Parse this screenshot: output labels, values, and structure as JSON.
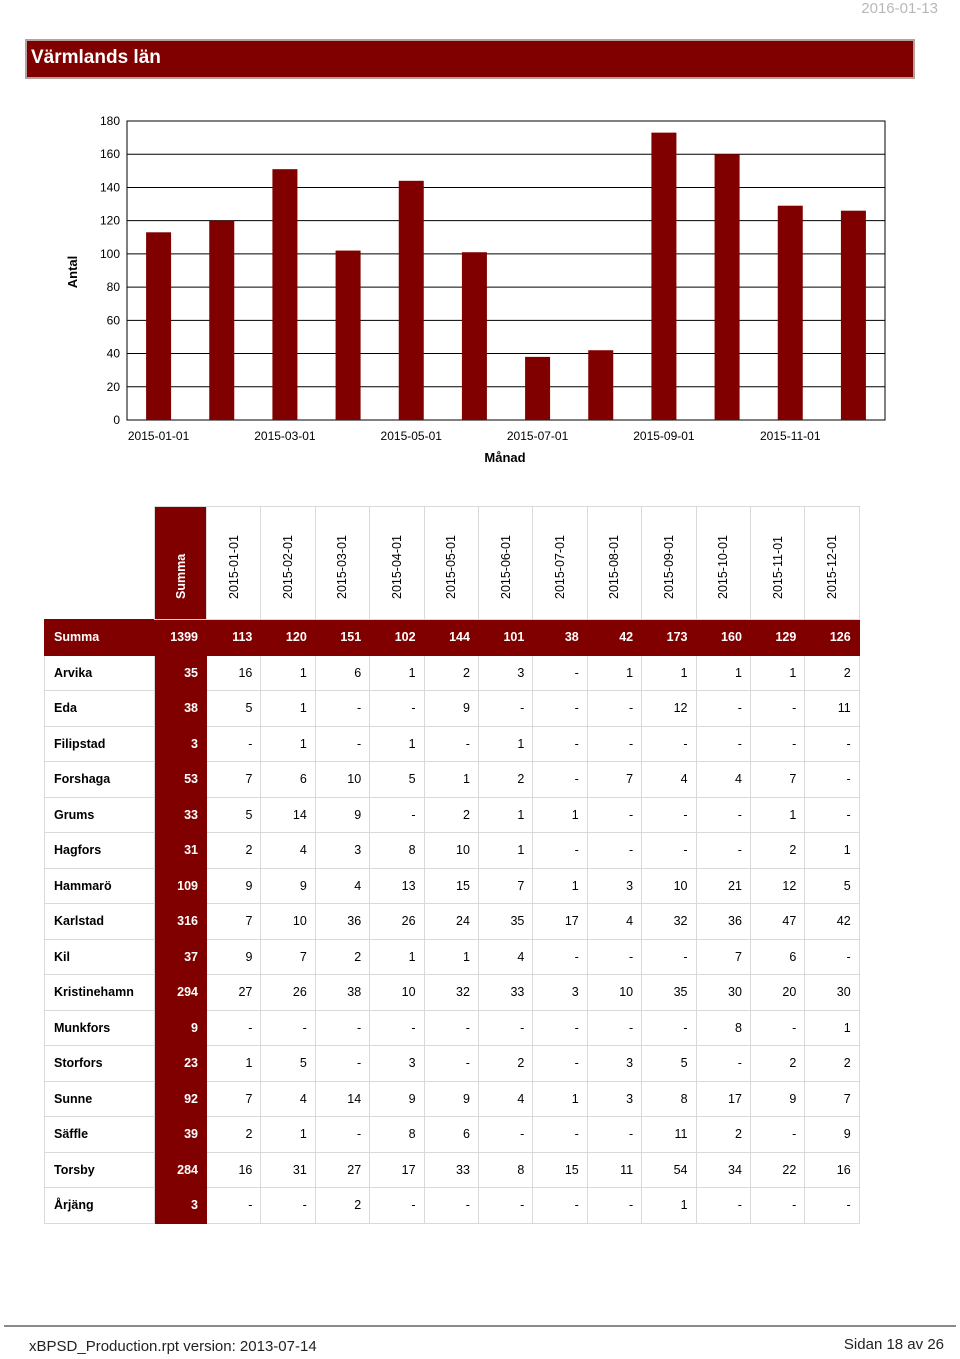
{
  "header": {
    "date": "2016-01-13",
    "title": "Värmlands län"
  },
  "chart_data": {
    "type": "bar",
    "categories": [
      "2015-01-01",
      "2015-02-01",
      "2015-03-01",
      "2015-04-01",
      "2015-05-01",
      "2015-06-01",
      "2015-07-01",
      "2015-08-01",
      "2015-09-01",
      "2015-10-01",
      "2015-11-01",
      "2015-12-01"
    ],
    "values": [
      113,
      120,
      151,
      102,
      144,
      101,
      38,
      42,
      173,
      160,
      129,
      126
    ],
    "x_tick_labels": [
      "2015-01-01",
      "2015-03-01",
      "2015-05-01",
      "2015-07-01",
      "2015-09-01",
      "2015-11-01"
    ],
    "y_ticks": [
      0,
      20,
      40,
      60,
      80,
      100,
      120,
      140,
      160,
      180
    ],
    "ylim": [
      0,
      180
    ],
    "xlabel": "Månad",
    "ylabel": "Antal",
    "bar_color": "#800000",
    "grid": true
  },
  "table": {
    "columns": [
      "Summa",
      "2015-01-01",
      "2015-02-01",
      "2015-03-01",
      "2015-04-01",
      "2015-05-01",
      "2015-06-01",
      "2015-07-01",
      "2015-08-01",
      "2015-09-01",
      "2015-10-01",
      "2015-11-01",
      "2015-12-01"
    ],
    "total_row": {
      "name": "Summa",
      "values": [
        "1399",
        "113",
        "120",
        "151",
        "102",
        "144",
        "101",
        "38",
        "42",
        "173",
        "160",
        "129",
        "126"
      ]
    },
    "rows": [
      {
        "name": "Arvika",
        "values": [
          "35",
          "16",
          "1",
          "6",
          "1",
          "2",
          "3",
          "-",
          "1",
          "1",
          "1",
          "1",
          "2"
        ]
      },
      {
        "name": "Eda",
        "values": [
          "38",
          "5",
          "1",
          "-",
          "-",
          "9",
          "-",
          "-",
          "-",
          "12",
          "-",
          "-",
          "11"
        ]
      },
      {
        "name": "Filipstad",
        "values": [
          "3",
          "-",
          "1",
          "-",
          "1",
          "-",
          "1",
          "-",
          "-",
          "-",
          "-",
          "-",
          "-"
        ]
      },
      {
        "name": "Forshaga",
        "values": [
          "53",
          "7",
          "6",
          "10",
          "5",
          "1",
          "2",
          "-",
          "7",
          "4",
          "4",
          "7",
          "-"
        ]
      },
      {
        "name": "Grums",
        "values": [
          "33",
          "5",
          "14",
          "9",
          "-",
          "2",
          "1",
          "1",
          "-",
          "-",
          "-",
          "1",
          "-"
        ]
      },
      {
        "name": "Hagfors",
        "values": [
          "31",
          "2",
          "4",
          "3",
          "8",
          "10",
          "1",
          "-",
          "-",
          "-",
          "-",
          "2",
          "1"
        ]
      },
      {
        "name": "Hammarö",
        "values": [
          "109",
          "9",
          "9",
          "4",
          "13",
          "15",
          "7",
          "1",
          "3",
          "10",
          "21",
          "12",
          "5"
        ]
      },
      {
        "name": "Karlstad",
        "values": [
          "316",
          "7",
          "10",
          "36",
          "26",
          "24",
          "35",
          "17",
          "4",
          "32",
          "36",
          "47",
          "42"
        ]
      },
      {
        "name": "Kil",
        "values": [
          "37",
          "9",
          "7",
          "2",
          "1",
          "1",
          "4",
          "-",
          "-",
          "-",
          "7",
          "6",
          "-"
        ]
      },
      {
        "name": "Kristinehamn",
        "values": [
          "294",
          "27",
          "26",
          "38",
          "10",
          "32",
          "33",
          "3",
          "10",
          "35",
          "30",
          "20",
          "30"
        ]
      },
      {
        "name": "Munkfors",
        "values": [
          "9",
          "-",
          "-",
          "-",
          "-",
          "-",
          "-",
          "-",
          "-",
          "-",
          "8",
          "-",
          "1"
        ]
      },
      {
        "name": "Storfors",
        "values": [
          "23",
          "1",
          "5",
          "-",
          "3",
          "-",
          "2",
          "-",
          "3",
          "5",
          "-",
          "2",
          "2"
        ]
      },
      {
        "name": "Sunne",
        "values": [
          "92",
          "7",
          "4",
          "14",
          "9",
          "9",
          "4",
          "1",
          "3",
          "8",
          "17",
          "9",
          "7"
        ]
      },
      {
        "name": "Säffle",
        "values": [
          "39",
          "2",
          "1",
          "-",
          "8",
          "6",
          "-",
          "-",
          "-",
          "11",
          "2",
          "-",
          "9"
        ]
      },
      {
        "name": "Torsby",
        "values": [
          "284",
          "16",
          "31",
          "27",
          "17",
          "33",
          "8",
          "15",
          "11",
          "54",
          "34",
          "22",
          "16"
        ]
      },
      {
        "name": "Årjäng",
        "values": [
          "3",
          "-",
          "-",
          "2",
          "-",
          "-",
          "-",
          "-",
          "-",
          "1",
          "-",
          "-",
          "-"
        ]
      }
    ]
  },
  "footer": {
    "report": "xBPSD_Production.rpt   version: 2013-07-14",
    "page": "Sidan 18 av 26"
  }
}
